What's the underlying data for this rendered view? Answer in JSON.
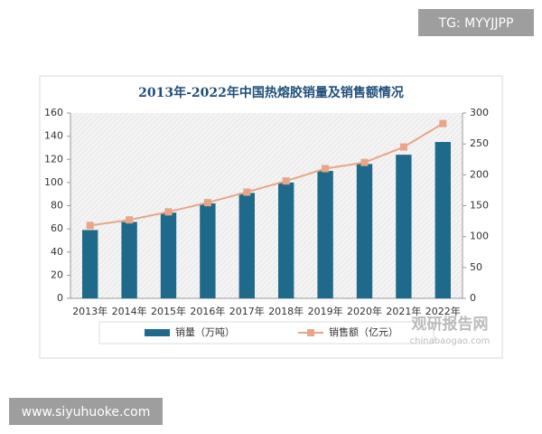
{
  "chart_data": {
    "type": "bar",
    "title": "2013年-2022年中国热熔胶销量及销售额情况",
    "categories": [
      "2013年",
      "2014年",
      "2015年",
      "2016年",
      "2017年",
      "2018年",
      "2019年",
      "2020年",
      "2021年",
      "2022年"
    ],
    "series": [
      {
        "name": "销量（万吨）",
        "type": "bar",
        "color": "#1f6a8a",
        "values": [
          59,
          66,
          74,
          82,
          91,
          100,
          110,
          116,
          124,
          135
        ]
      },
      {
        "name": "销售额（亿元）",
        "type": "line",
        "axis": "y2",
        "color": "#e8a587",
        "values": [
          118,
          127,
          140,
          155,
          172,
          190,
          210,
          220,
          245,
          283
        ]
      }
    ],
    "ylim": [
      0,
      160
    ],
    "yticks": [
      0,
      20,
      40,
      60,
      80,
      100,
      120,
      140,
      160
    ],
    "y2lim": [
      0,
      300
    ],
    "y2ticks": [
      0,
      50,
      100,
      150,
      200,
      250,
      300
    ],
    "legend": "bottom"
  },
  "watermarks": {
    "tg": "TG: MYYJJPP",
    "site": "www.siyuhuoke.com",
    "brand": "观研报告网",
    "brand_url": "chinabaogao.com"
  }
}
